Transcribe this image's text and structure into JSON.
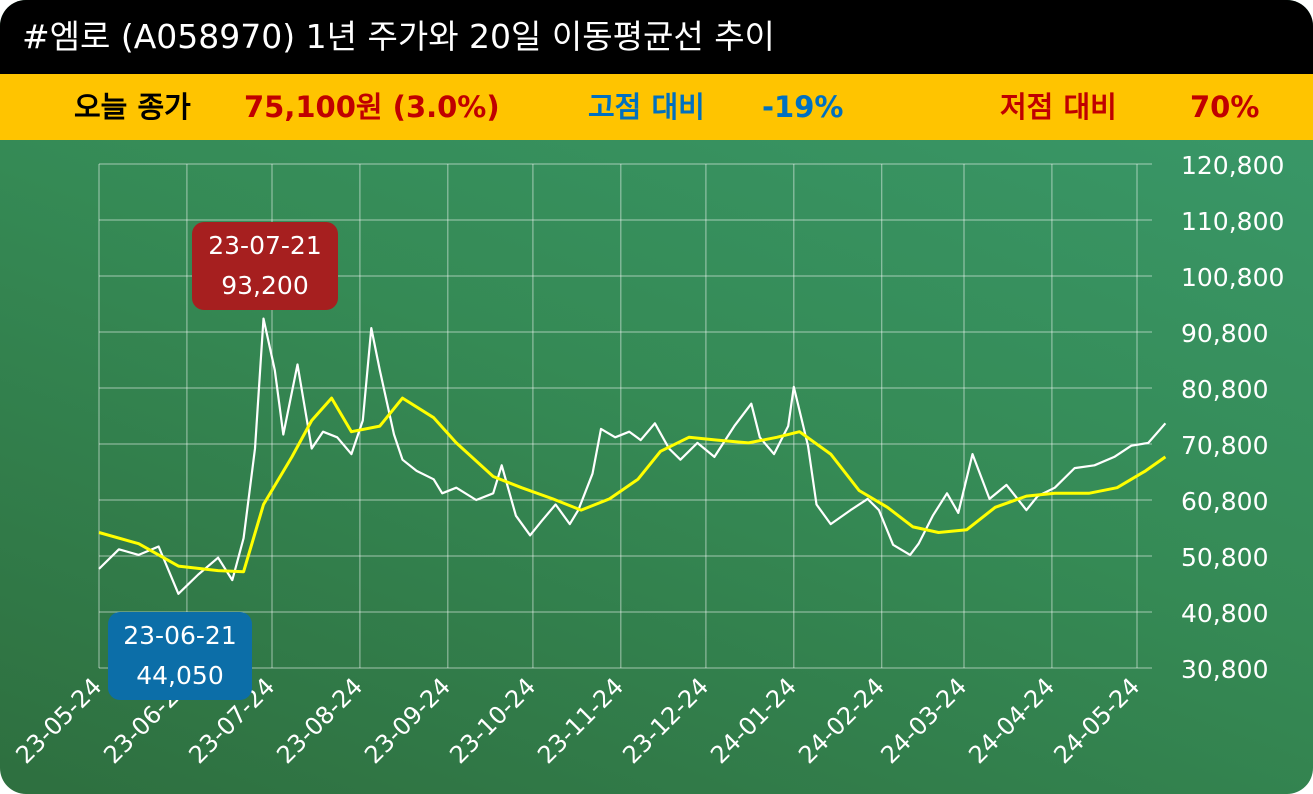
{
  "title": "#엠로 (A058970) 1년 주가와 20일 이동평균선 추이",
  "info": {
    "close_label": "오늘 종가",
    "close_value": "75,100원 (3.0%)",
    "high_label": "고점 대비",
    "high_value": "-19%",
    "low_label": "저점 대비",
    "low_value": "70%"
  },
  "colors": {
    "title_bg": "#000000",
    "info_bg": "#ffc400",
    "close_value": "#c00000",
    "high": "#0070c0",
    "low": "#c00000",
    "price_line": "#ffffff",
    "ma_line": "#ffff00",
    "high_tag": "#a61f1f",
    "low_tag": "#0c6ea8"
  },
  "annotations": {
    "high": {
      "date": "23-07-21",
      "value": "93,200"
    },
    "low": {
      "date": "23-06-21",
      "value": "44,050"
    }
  },
  "chart_data": {
    "type": "line",
    "y_ticks": [
      "120,800",
      "110,800",
      "100,800",
      "90,800",
      "80,800",
      "70,800",
      "60,800",
      "50,800",
      "40,800",
      "30,800"
    ],
    "ylim": [
      30800,
      120800
    ],
    "x_ticks": [
      "23-05-24",
      "23-06-24",
      "23-07-24",
      "23-08-24",
      "23-09-24",
      "23-10-24",
      "23-11-24",
      "23-12-24",
      "24-01-24",
      "24-02-24",
      "24-03-24",
      "24-04-24",
      "24-05-24"
    ],
    "grid": true,
    "series": [
      {
        "key": "price",
        "dates": [
          "2023-05-24",
          "2023-05-31",
          "2023-06-07",
          "2023-06-14",
          "2023-06-21",
          "2023-06-28",
          "2023-07-05",
          "2023-07-10",
          "2023-07-14",
          "2023-07-18",
          "2023-07-21",
          "2023-07-25",
          "2023-07-28",
          "2023-08-02",
          "2023-08-07",
          "2023-08-11",
          "2023-08-16",
          "2023-08-21",
          "2023-08-25",
          "2023-08-28",
          "2023-08-31",
          "2023-09-05",
          "2023-09-08",
          "2023-09-13",
          "2023-09-19",
          "2023-09-22",
          "2023-09-27",
          "2023-10-04",
          "2023-10-10",
          "2023-10-13",
          "2023-10-18",
          "2023-10-23",
          "2023-10-27",
          "2023-11-01",
          "2023-11-06",
          "2023-11-09",
          "2023-11-14",
          "2023-11-17",
          "2023-11-22",
          "2023-11-27",
          "2023-12-01",
          "2023-12-06",
          "2023-12-11",
          "2023-12-15",
          "2023-12-21",
          "2023-12-27",
          "2024-01-03",
          "2024-01-09",
          "2024-01-12",
          "2024-01-17",
          "2024-01-22",
          "2024-01-24",
          "2024-01-29",
          "2024-02-01",
          "2024-02-06",
          "2024-02-13",
          "2024-02-19",
          "2024-02-23",
          "2024-02-28",
          "2024-03-05",
          "2024-03-08",
          "2024-03-13",
          "2024-03-18",
          "2024-03-22",
          "2024-03-27",
          "2024-04-02",
          "2024-04-08",
          "2024-04-15",
          "2024-04-19",
          "2024-04-25",
          "2024-05-02",
          "2024-05-09",
          "2024-05-16",
          "2024-05-22",
          "2024-05-28",
          "2024-06-03"
        ],
        "values": [
          48500,
          52000,
          51000,
          52500,
          44050,
          47500,
          50500,
          46500,
          54000,
          70000,
          93200,
          84000,
          72500,
          85000,
          70000,
          73000,
          72000,
          69000,
          75000,
          91500,
          84000,
          72500,
          68000,
          66000,
          64500,
          62000,
          63000,
          60800,
          62000,
          67000,
          58000,
          54500,
          57000,
          60000,
          56500,
          59000,
          65500,
          73500,
          72000,
          73000,
          71500,
          74500,
          70000,
          68000,
          71000,
          68500,
          74000,
          78000,
          72000,
          69000,
          74000,
          81000,
          70500,
          60000,
          56500,
          59000,
          61000,
          59000,
          52800,
          51000,
          53000,
          58000,
          62000,
          58500,
          69000,
          61000,
          63500,
          59000,
          61500,
          63000,
          66500,
          67000,
          68500,
          70500,
          71000,
          74500
        ]
      },
      {
        "key": "ma20",
        "dates": [
          "2023-05-24",
          "2023-06-07",
          "2023-06-21",
          "2023-07-05",
          "2023-07-14",
          "2023-07-21",
          "2023-07-31",
          "2023-08-07",
          "2023-08-14",
          "2023-08-21",
          "2023-08-31",
          "2023-09-08",
          "2023-09-19",
          "2023-09-27",
          "2023-10-10",
          "2023-10-20",
          "2023-10-31",
          "2023-11-10",
          "2023-11-20",
          "2023-11-30",
          "2023-12-08",
          "2023-12-18",
          "2023-12-28",
          "2024-01-08",
          "2024-01-18",
          "2024-01-26",
          "2024-02-06",
          "2024-02-16",
          "2024-02-26",
          "2024-03-06",
          "2024-03-15",
          "2024-03-25",
          "2024-04-04",
          "2024-04-15",
          "2024-04-25",
          "2024-05-07",
          "2024-05-17",
          "2024-05-27",
          "2024-06-03"
        ],
        "values": [
          55000,
          53000,
          49000,
          48200,
          48000,
          60000,
          68500,
          75000,
          79000,
          73000,
          74000,
          79000,
          75500,
          71000,
          65000,
          63000,
          61000,
          59000,
          61000,
          64500,
          69500,
          72000,
          71500,
          71000,
          72000,
          73000,
          69000,
          62500,
          59500,
          56000,
          55000,
          55500,
          59500,
          61500,
          62000,
          62000,
          63000,
          66000,
          68500
        ]
      }
    ]
  }
}
